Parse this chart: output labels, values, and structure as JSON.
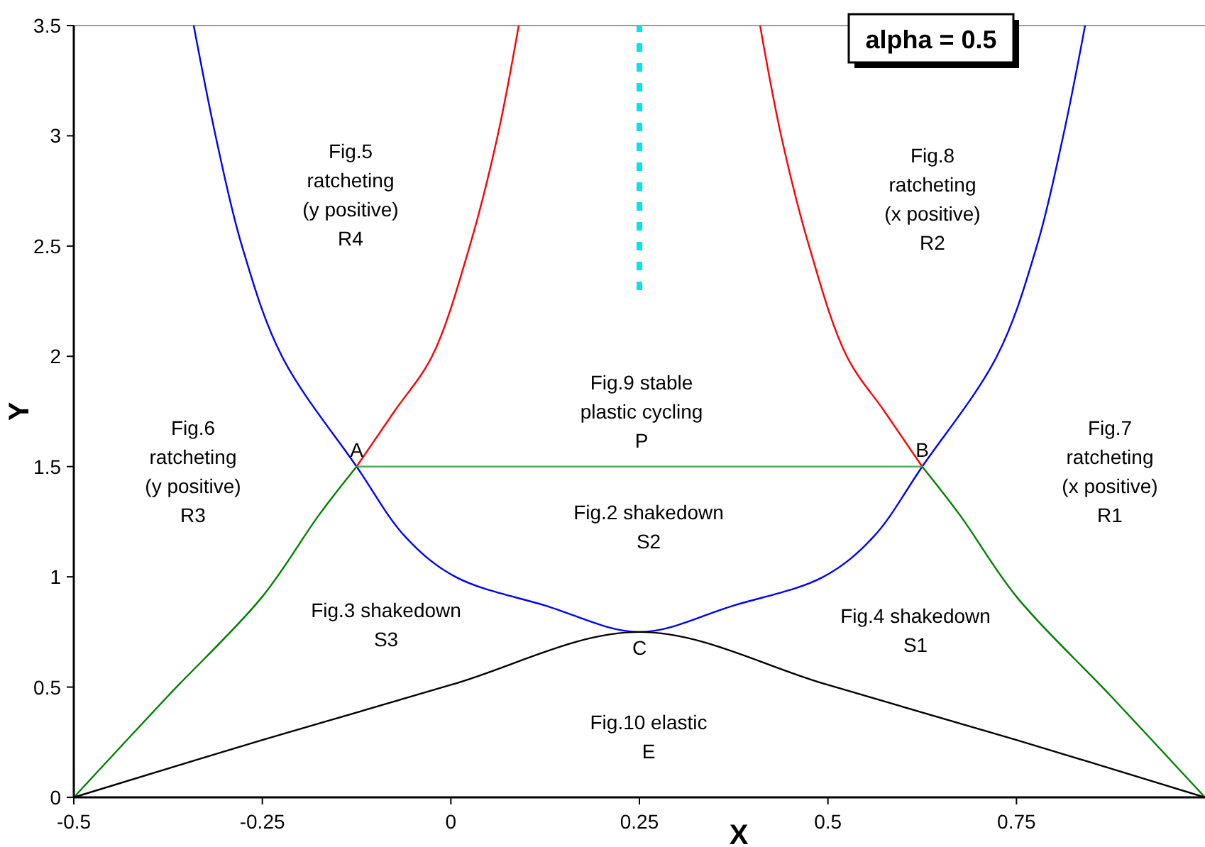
{
  "chart_data": {
    "type": "line",
    "xlabel": "X",
    "ylabel": "Y",
    "xlim": [
      -0.5,
      1
    ],
    "ylim": [
      0,
      3.5
    ],
    "xticks": [
      -0.5,
      -0.25,
      0,
      0.25,
      0.5,
      0.75
    ],
    "yticks": [
      0,
      0.5,
      1,
      1.5,
      2,
      2.5,
      3,
      3.5
    ],
    "series": [
      {
        "color": "#0000ff",
        "x": [
          -0.341,
          -0.312,
          -0.277,
          -0.224,
          -0.125,
          -0.06,
          0.006,
          0.125,
          0.25,
          0.375,
          0.494,
          0.56,
          0.625,
          0.724,
          0.777,
          0.812,
          0.841
        ],
        "values": [
          3.5,
          3,
          2.5,
          2,
          1.5,
          1.18,
          1,
          0.87,
          0.75,
          0.87,
          1,
          1.18,
          1.5,
          2,
          2.5,
          3,
          3.5
        ]
      },
      {
        "color": "#ff0000",
        "x": [
          -0.125,
          -0.075,
          -0.025,
          0.025,
          0.062,
          0.09
        ],
        "values": [
          1.5,
          1.75,
          2,
          2.5,
          3,
          3.5
        ]
      },
      {
        "color": "#ff0000",
        "x": [
          0.625,
          0.575,
          0.525,
          0.475,
          0.438,
          0.41
        ],
        "values": [
          1.5,
          1.75,
          2,
          2.5,
          3,
          3.5
        ]
      },
      {
        "color": "#008000",
        "x": [
          -0.5,
          -0.375,
          -0.25,
          -0.175,
          -0.125
        ],
        "values": [
          0,
          0.46,
          0.91,
          1.28,
          1.5
        ]
      },
      {
        "color": "#008000",
        "x": [
          0.625,
          0.675,
          0.75,
          0.875,
          1
        ],
        "values": [
          1.5,
          1.28,
          0.91,
          0.46,
          0
        ]
      },
      {
        "color": "#55aa55",
        "x": [
          -0.125,
          0.625
        ],
        "values": [
          1.5,
          1.5
        ]
      },
      {
        "color": "#000000",
        "x": [
          -0.5,
          -0.25,
          0,
          0.25,
          0.5,
          0.75,
          1
        ],
        "values": [
          0,
          0.26,
          0.51,
          0.75,
          0.51,
          0.26,
          0
        ]
      },
      {
        "color": "#00e5ee",
        "x": [
          0.25,
          0.25
        ],
        "values": [
          2.3,
          3.5
        ],
        "line_style": "dotted"
      }
    ],
    "annotations": [
      "Fig.5\nratcheting\n(y positive)\nR4",
      "Fig.8\nratcheting\n(x positive)\nR2",
      "Fig.9 stable\nplastic cycling\nP",
      "Fig.6\nratcheting\n(y positive)\nR3",
      "Fig.7\nratcheting\n(x positive)\nR1",
      "Fig.2 shakedown\nS2",
      "Fig.3 shakedown\nS3",
      "Fig.4 shakedown\nS1",
      "Fig.10 elastic\nE",
      {
        "text": "A",
        "x": -0.125,
        "y": 1.5
      },
      {
        "text": "B",
        "x": 0.625,
        "y": 1.5
      },
      {
        "text": "C",
        "x": 0.25,
        "y": 0.75
      },
      "alpha = 0.5"
    ]
  }
}
